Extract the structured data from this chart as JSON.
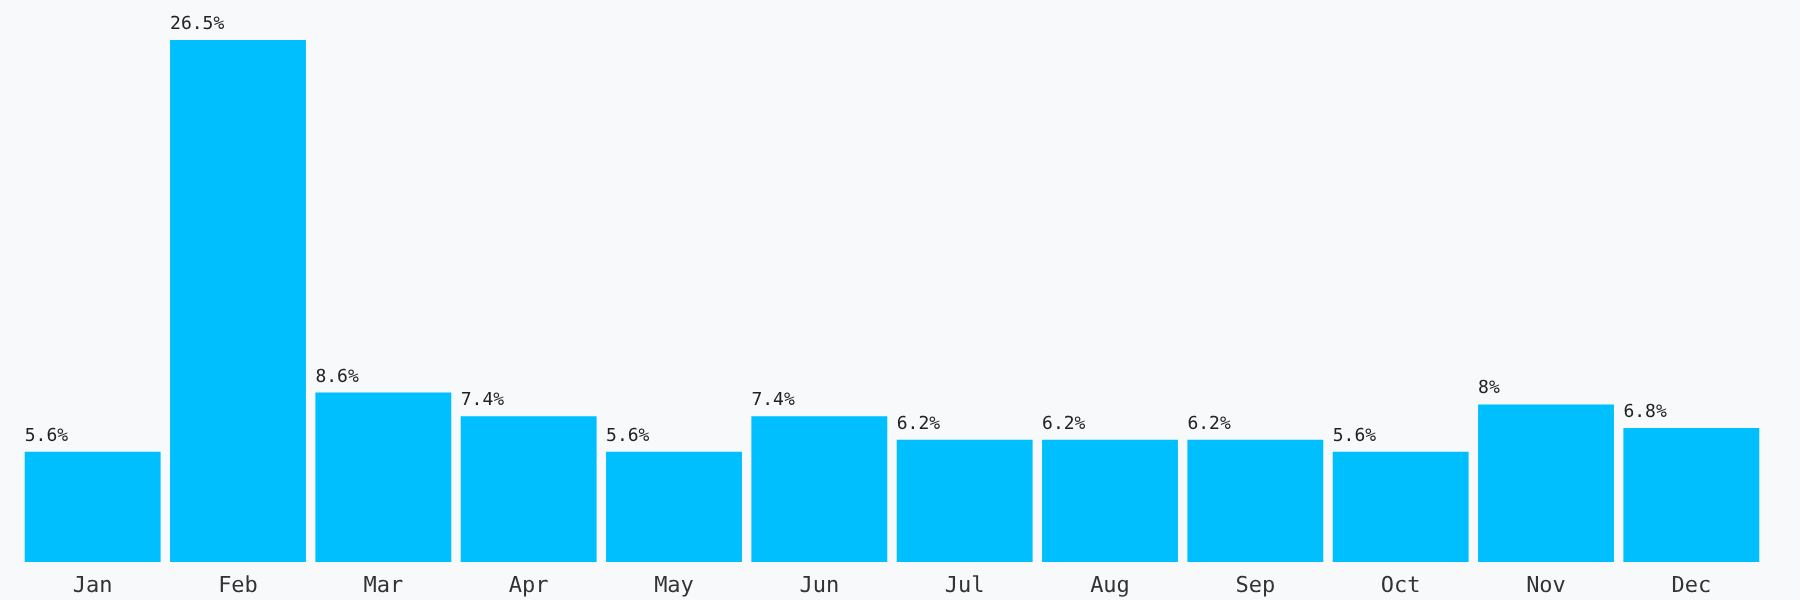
{
  "chart_data": {
    "type": "bar",
    "categories": [
      "Jan",
      "Feb",
      "Mar",
      "Apr",
      "May",
      "Jun",
      "Jul",
      "Aug",
      "Sep",
      "Oct",
      "Nov",
      "Dec"
    ],
    "values": [
      5.6,
      26.5,
      8.6,
      7.4,
      5.6,
      7.4,
      6.2,
      6.2,
      6.2,
      5.6,
      8,
      6.8
    ],
    "value_labels": [
      "5.6%",
      "26.5%",
      "8.6%",
      "7.4%",
      "5.6%",
      "7.4%",
      "6.2%",
      "6.2%",
      "6.2%",
      "5.6%",
      "8%",
      "6.8%"
    ],
    "color": "#00bfff"
  }
}
